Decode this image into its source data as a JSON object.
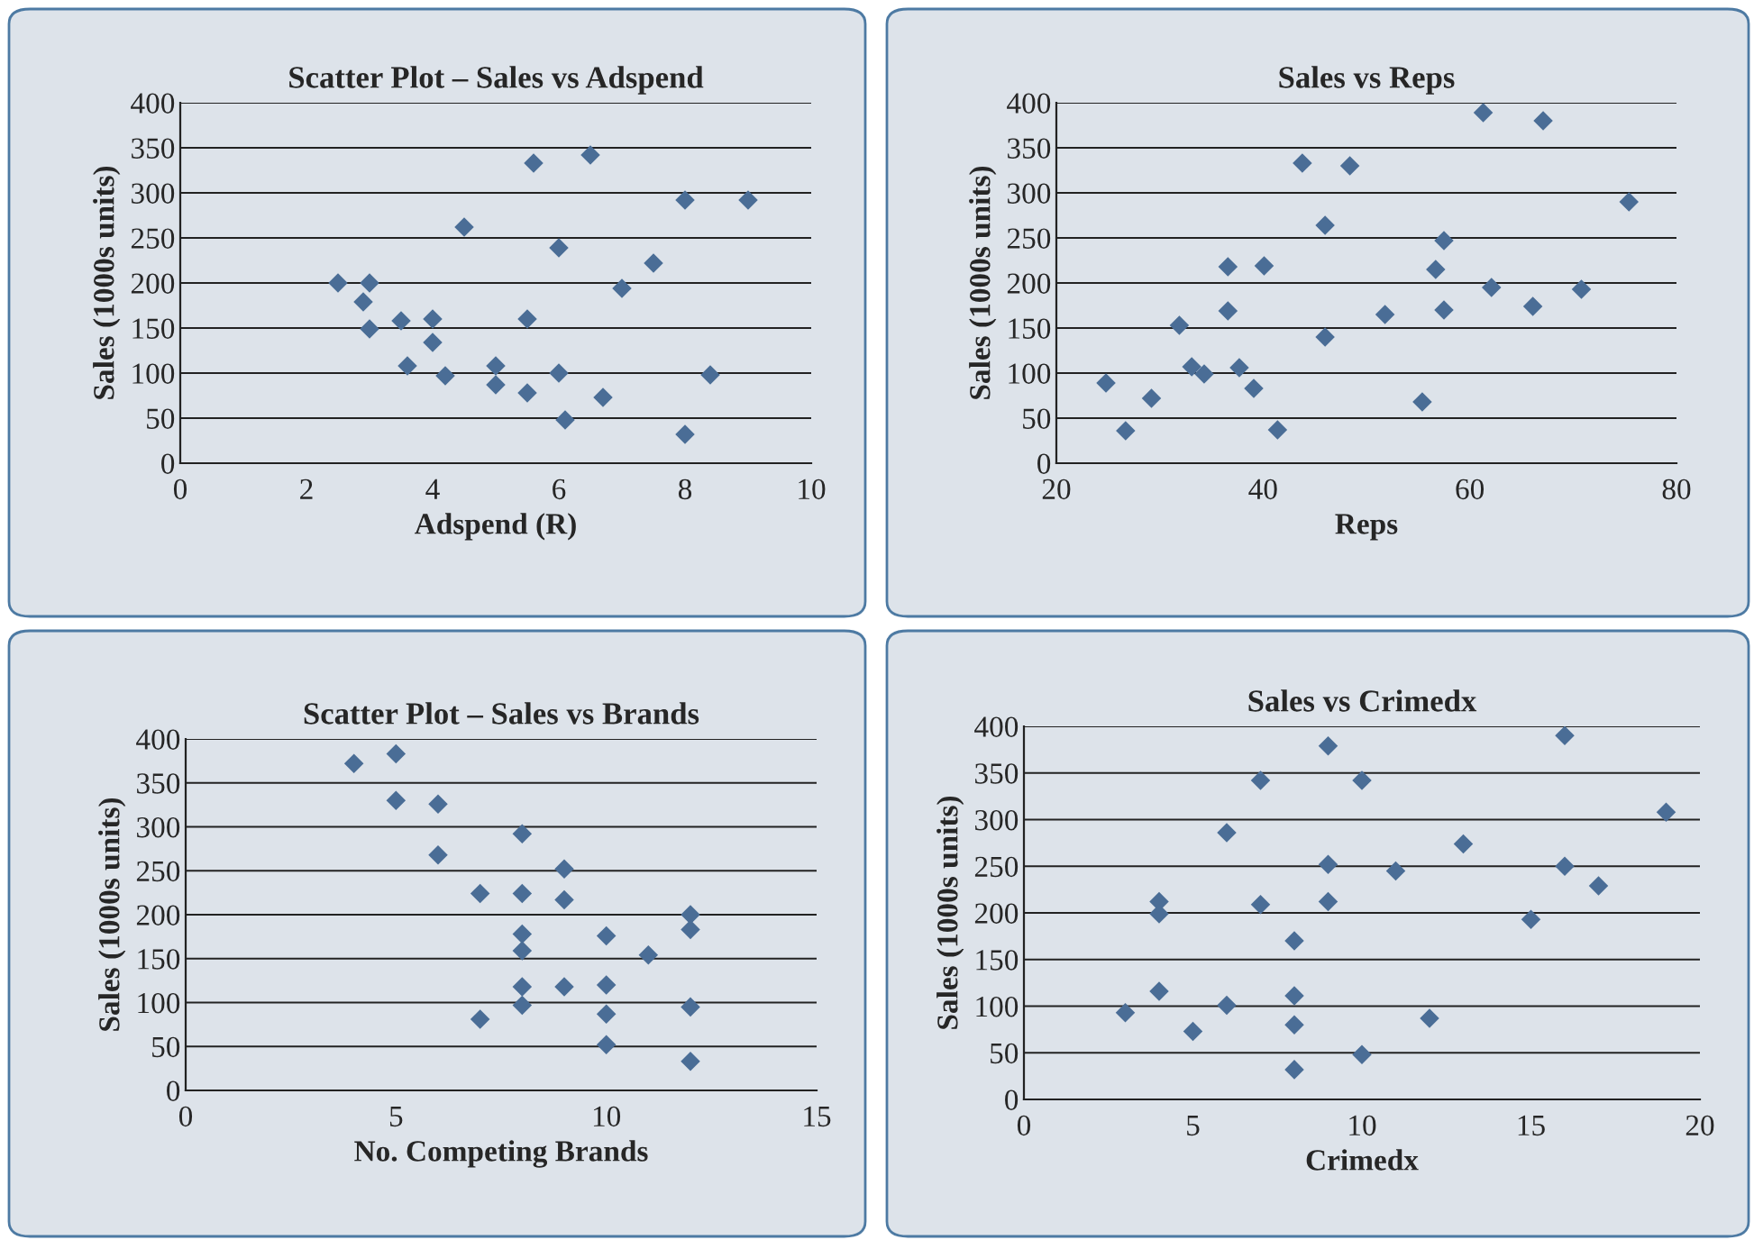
{
  "chart_data": [
    {
      "type": "scatter",
      "title": "Scatter Plot – Sales vs Adspend",
      "xlabel": "Adspend (R)",
      "ylabel": "Sales (1000s units)",
      "marker": "diamond",
      "grid": "y",
      "xlim": [
        0,
        10
      ],
      "ylim": [
        0,
        400
      ],
      "xticks": [
        0,
        2,
        4,
        6,
        8,
        10
      ],
      "yticks": [
        0,
        50,
        100,
        150,
        200,
        250,
        300,
        350,
        400
      ],
      "series": [
        {
          "color": "#4a6d96",
          "x": [
            2.5,
            3.0,
            2.9,
            3.0,
            3.5,
            4.0,
            4.0,
            3.6,
            4.2,
            4.5,
            5.0,
            5.0,
            5.6,
            5.5,
            5.5,
            6.5,
            6.0,
            6.0,
            6.1,
            6.7,
            7.0,
            7.5,
            8.0,
            9.0,
            8.0,
            8.4
          ],
          "values": [
            200,
            200,
            179,
            149,
            158,
            160,
            134,
            108,
            97,
            262,
            108,
            87,
            333,
            160,
            78,
            342,
            239,
            100,
            48,
            73,
            194,
            222,
            292,
            292,
            32,
            98
          ]
        }
      ]
    },
    {
      "type": "scatter",
      "title": "Sales vs Reps",
      "xlabel": "Reps",
      "ylabel": "Sales (1000s units)",
      "marker": "diamond",
      "grid": "y",
      "xlim": [
        20,
        80
      ],
      "ylim": [
        0,
        400
      ],
      "xticks": [
        20,
        40,
        60,
        80
      ],
      "yticks": [
        0,
        50,
        100,
        150,
        200,
        250,
        300,
        350,
        400
      ],
      "series": [
        {
          "color": "#4a6d96",
          "x": [
            24.8,
            26.7,
            29.2,
            31.9,
            33.1,
            34.3,
            36.6,
            36.6,
            37.7,
            39.1,
            40.1,
            41.4,
            43.8,
            46.0,
            46.0,
            48.4,
            51.8,
            55.4,
            56.7,
            57.5,
            57.5,
            61.3,
            62.1,
            66.1,
            67.1,
            70.8,
            75.4
          ],
          "values": [
            89,
            36,
            72,
            153,
            107,
            99,
            218,
            169,
            106,
            83,
            219,
            37,
            333,
            264,
            140,
            330,
            165,
            68,
            215,
            247,
            170,
            389,
            195,
            174,
            380,
            193,
            290
          ]
        }
      ]
    },
    {
      "type": "scatter",
      "title": "Scatter Plot – Sales vs Brands",
      "xlabel": "No. Competing Brands",
      "ylabel": "Sales (1000s units)",
      "marker": "diamond",
      "grid": "y",
      "xlim": [
        0,
        15
      ],
      "ylim": [
        0,
        400
      ],
      "xticks": [
        0,
        5,
        10,
        15
      ],
      "yticks": [
        0,
        50,
        100,
        150,
        200,
        250,
        300,
        350,
        400
      ],
      "series": [
        {
          "color": "#4a6d96",
          "x": [
            4,
            5,
            5,
            6,
            6,
            7,
            7,
            8,
            8,
            8,
            8,
            8,
            8,
            9,
            9,
            9,
            10,
            10,
            10,
            10,
            11,
            12,
            12,
            12,
            12
          ],
          "values": [
            372,
            383,
            330,
            326,
            268,
            224,
            81,
            292,
            224,
            178,
            159,
            118,
            97,
            252,
            217,
            118,
            176,
            120,
            87,
            52,
            154,
            200,
            183,
            95,
            33
          ]
        }
      ]
    },
    {
      "type": "scatter",
      "title": "Sales vs Crimedx",
      "xlabel": "Crimedx",
      "ylabel": "Sales (1000s units)",
      "marker": "diamond",
      "grid": "y",
      "xlim": [
        0,
        20
      ],
      "ylim": [
        0,
        400
      ],
      "xticks": [
        0,
        5,
        10,
        15,
        20
      ],
      "yticks": [
        0,
        50,
        100,
        150,
        200,
        250,
        300,
        350,
        400
      ],
      "series": [
        {
          "color": "#4a6d96",
          "x": [
            3,
            4,
            4,
            4,
            5,
            6,
            6,
            7,
            7,
            8,
            8,
            8,
            8,
            9,
            9,
            9,
            10,
            10,
            11,
            12,
            13,
            15,
            16,
            16,
            17,
            19
          ],
          "values": [
            93,
            212,
            199,
            116,
            73,
            286,
            101,
            342,
            209,
            170,
            111,
            80,
            32,
            379,
            252,
            212,
            342,
            48,
            245,
            87,
            274,
            193,
            390,
            250,
            229,
            308
          ]
        }
      ]
    }
  ]
}
